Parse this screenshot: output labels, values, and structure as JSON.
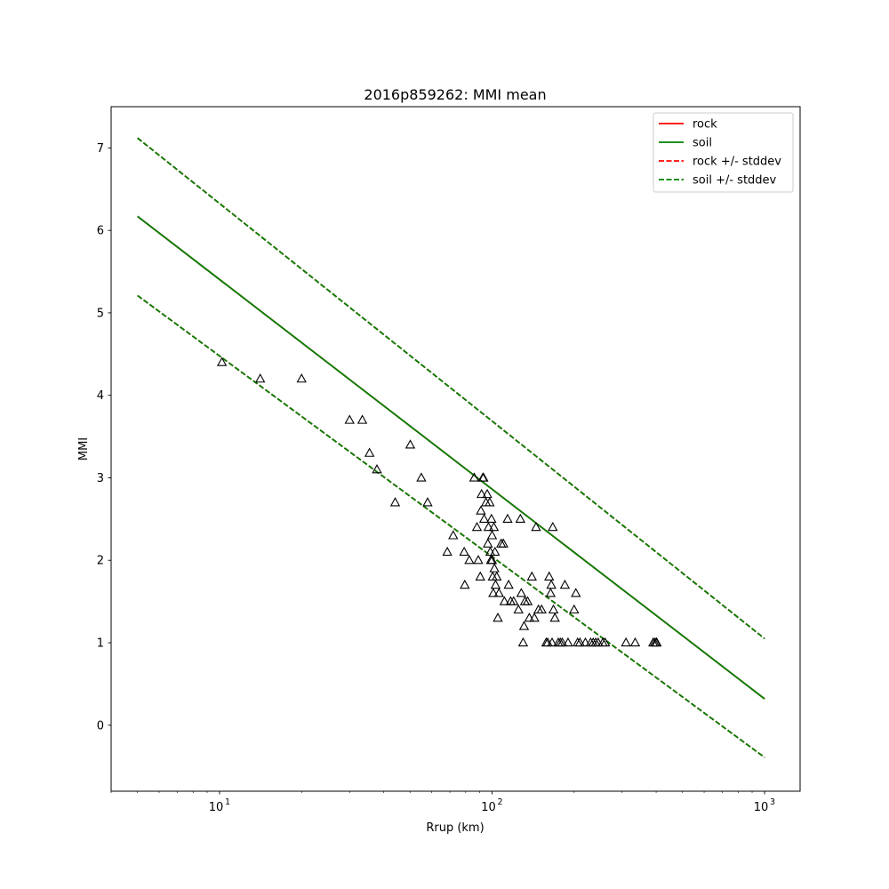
{
  "chart_data": {
    "type": "scatter",
    "title": "2016p859262: MMI mean",
    "xlabel": "Rrup (km)",
    "ylabel": "MMI",
    "xscale": "log",
    "xlim": [
      4.0,
      1350
    ],
    "ylim": [
      -0.8,
      7.5
    ],
    "grid": false,
    "legend_position": "top-right",
    "x_major_ticks": [
      10,
      100,
      1000
    ],
    "x_tick_labels": [
      {
        "base": "10",
        "exp": "1"
      },
      {
        "base": "10",
        "exp": "2"
      },
      {
        "base": "10",
        "exp": "3"
      }
    ],
    "y_ticks": [
      0,
      1,
      2,
      3,
      4,
      5,
      6,
      7
    ],
    "y_tick_labels": [
      "0",
      "1",
      "2",
      "3",
      "4",
      "5",
      "6",
      "7"
    ],
    "series": [
      {
        "name": "rock",
        "style": "solid",
        "color": "#ff0000",
        "x": [
          5,
          1000
        ],
        "y": [
          6.17,
          0.32
        ]
      },
      {
        "name": "soil",
        "style": "solid",
        "color": "#008000",
        "x": [
          5,
          1000
        ],
        "y": [
          6.17,
          0.32
        ]
      },
      {
        "name": "rock +/- stddev",
        "style": "dashed",
        "color": "#ff0000",
        "x": [
          5,
          1000
        ],
        "y": [
          7.12,
          1.05
        ]
      },
      {
        "name": "rock +/- stddev (lower)",
        "style": "dashed",
        "color": "#ff0000",
        "x": [
          5,
          1000
        ],
        "y": [
          5.21,
          -0.39
        ]
      },
      {
        "name": "soil +/- stddev",
        "style": "dashed",
        "color": "#008000",
        "x": [
          5,
          1000
        ],
        "y": [
          7.12,
          1.05
        ]
      },
      {
        "name": "soil +/- stddev (lower)",
        "style": "dashed",
        "color": "#008000",
        "x": [
          5,
          1000
        ],
        "y": [
          5.21,
          -0.39
        ]
      }
    ],
    "legend": [
      "rock",
      "soil",
      "rock +/- stddev",
      "soil +/- stddev"
    ],
    "observations": {
      "marker": "triangle-open",
      "color": "#000000",
      "x": [
        10.2,
        14.1,
        20,
        30,
        33.4,
        35.5,
        37.8,
        44.1,
        50.1,
        55,
        58,
        68.5,
        72,
        79,
        79.4,
        82.5,
        86,
        88,
        89,
        90.5,
        91,
        91.5,
        92.5,
        93,
        93.5,
        95,
        96,
        96.5,
        97,
        98,
        98.5,
        99,
        99.5,
        100,
        100,
        100.5,
        101,
        101.5,
        102,
        102.5,
        103,
        104,
        105,
        106,
        108,
        110,
        111,
        114,
        115,
        117,
        120,
        125,
        127,
        128,
        130,
        131,
        132,
        135,
        137,
        140,
        143,
        145,
        148,
        152,
        158,
        160,
        162,
        164,
        165,
        166,
        167,
        168,
        170,
        175,
        178,
        181,
        185,
        190,
        200,
        203,
        206,
        210,
        220,
        230,
        235,
        240,
        245,
        255,
        260,
        310,
        335,
        390,
        395,
        400,
        402
      ],
      "y": [
        4.4,
        4.2,
        4.2,
        3.7,
        3.7,
        3.3,
        3.1,
        2.7,
        3.4,
        3.0,
        2.7,
        2.1,
        2.3,
        2.1,
        1.7,
        2.0,
        3.0,
        2.4,
        2.0,
        1.8,
        2.6,
        2.8,
        3.0,
        3.0,
        2.5,
        2.7,
        2.8,
        2.2,
        2.4,
        2.7,
        2.1,
        2.0,
        2.5,
        2.3,
        2.0,
        1.8,
        1.6,
        2.4,
        1.9,
        2.1,
        1.7,
        1.8,
        1.3,
        1.6,
        2.2,
        2.2,
        1.5,
        2.5,
        1.7,
        1.5,
        1.5,
        1.4,
        2.5,
        1.6,
        1.0,
        1.2,
        1.5,
        1.5,
        1.3,
        1.8,
        1.3,
        2.4,
        1.4,
        1.4,
        1.0,
        1.0,
        1.8,
        1.6,
        1.7,
        1.0,
        2.4,
        1.4,
        1.3,
        1.0,
        1.0,
        1.0,
        1.7,
        1.0,
        1.4,
        1.6,
        1.0,
        1.0,
        1.0,
        1.0,
        1.0,
        1.0,
        1.0,
        1.0,
        1.0,
        1.0,
        1.0,
        1.0,
        1.0,
        1.0,
        1.0
      ]
    }
  }
}
